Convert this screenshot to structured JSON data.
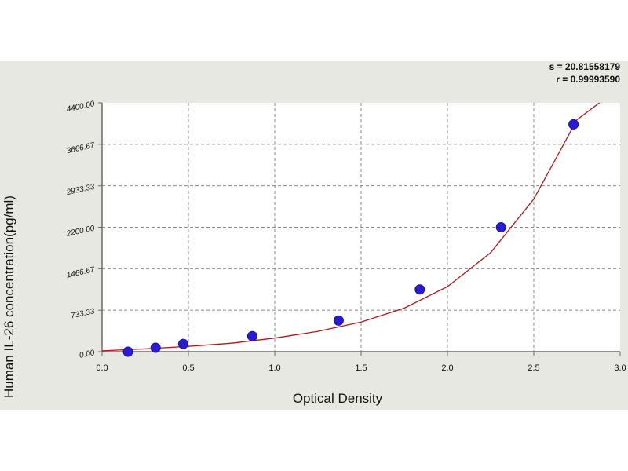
{
  "stats": {
    "s_line": "s = 20.81558179",
    "r_line": "r = 0.99993590"
  },
  "chart_data": {
    "type": "scatter",
    "xlabel": "Optical Density",
    "ylabel": "Human IL-26 concentration(pg/ml)",
    "xlim": [
      0.0,
      3.0
    ],
    "ylim": [
      0,
      4400
    ],
    "x_ticks": [
      0.0,
      0.5,
      1.0,
      1.5,
      2.0,
      2.5,
      3.0
    ],
    "x_tick_labels": [
      "0.0",
      "0.5",
      "1.0",
      "1.5",
      "2.0",
      "2.5",
      "3.0"
    ],
    "y_ticks": [
      0,
      733.33,
      1466.67,
      2200,
      2933.33,
      3666.67,
      4400
    ],
    "y_tick_labels": [
      "0.00",
      "733.33",
      "1466.67",
      "2200.00",
      "2933.33",
      "3666.67",
      "4400.00"
    ],
    "grid": true,
    "series": [
      {
        "x": [
          0.15,
          0.31,
          0.47,
          0.87,
          1.37,
          1.84,
          2.31,
          2.73
        ],
        "y": [
          0,
          68.75,
          137.5,
          275,
          550,
          1100,
          2200,
          4020
        ]
      }
    ],
    "fit_curve": {
      "x": [
        0.0,
        0.25,
        0.5,
        0.75,
        1.0,
        1.25,
        1.5,
        1.75,
        2.0,
        2.25,
        2.5,
        2.75,
        2.88
      ],
      "y": [
        15,
        50,
        95,
        150,
        240,
        360,
        525,
        770,
        1150,
        1750,
        2700,
        4100,
        4400
      ]
    },
    "colors": {
      "point": "#2a1bd8",
      "curve": "#b01818",
      "grid": "#8a8a8a",
      "axis": "#6a6a6a",
      "background": "#e8e8e2"
    }
  }
}
